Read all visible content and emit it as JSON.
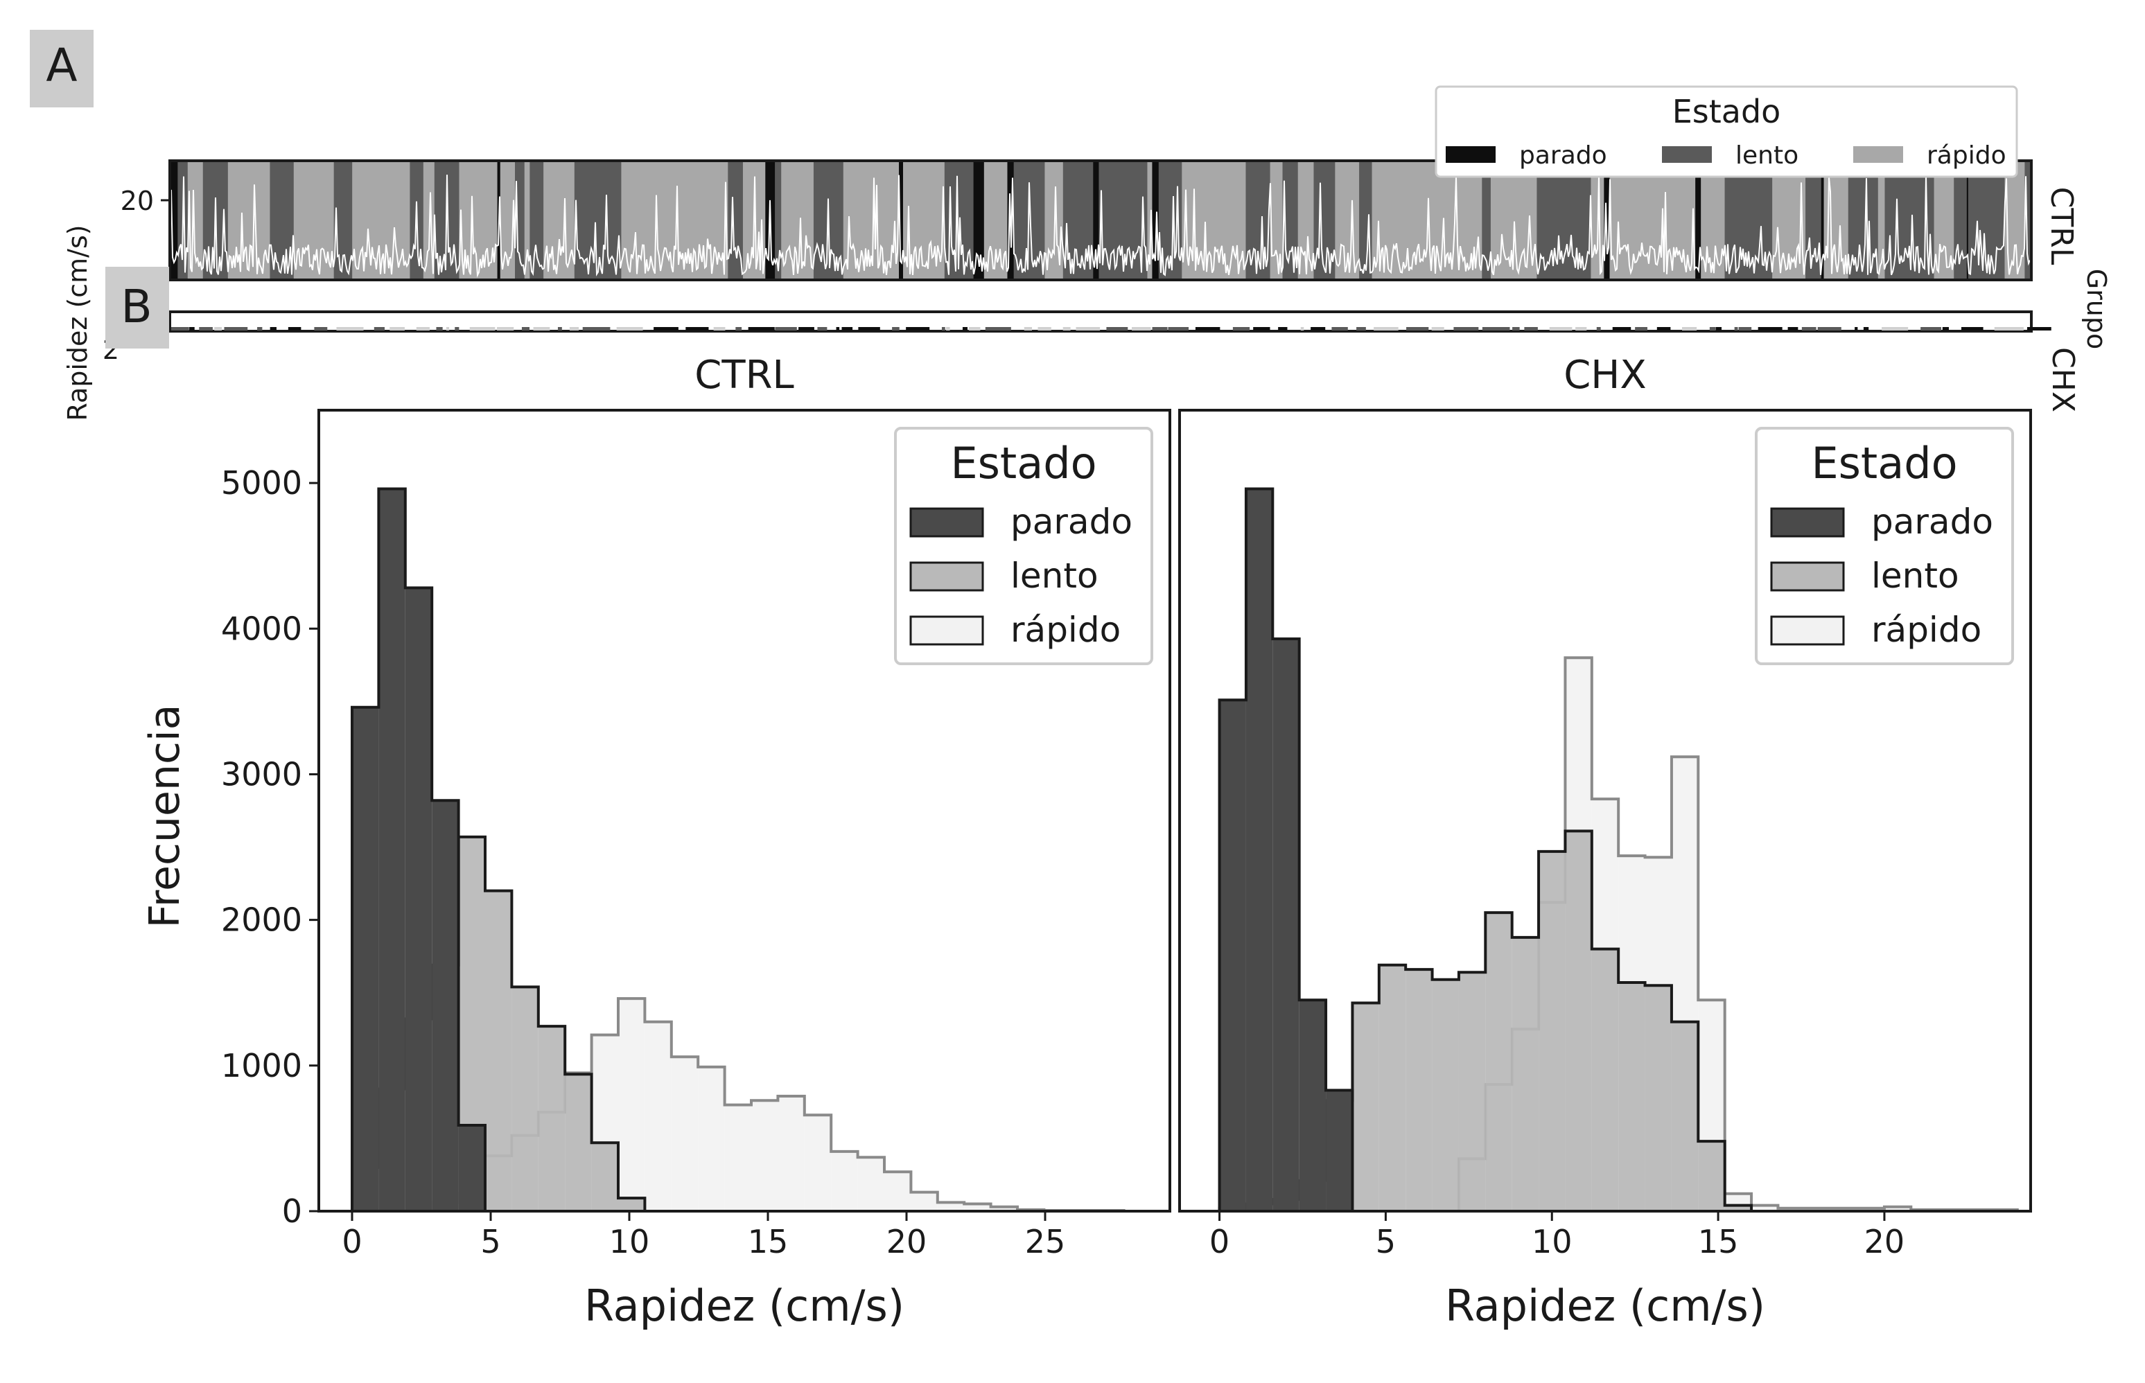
{
  "panel_labels": {
    "a": "A",
    "b": "B"
  },
  "colors": {
    "parado": "#4a4a4a",
    "lento": "#b9b9b9",
    "rapido": "#f2f2f2",
    "edge": "#1a1a1a"
  },
  "top": {
    "y_label": "Rapidez (cm/s)",
    "y_tick": "20",
    "y_tick_cut": "2",
    "facet_title": "Grupo",
    "rows": [
      "CTRL",
      "CHX"
    ],
    "legend": {
      "title": "Estado",
      "items": [
        "parado",
        "lento",
        "rápido"
      ],
      "colors": [
        "#0e0e0e",
        "#5a5a5a",
        "#a8a8a8"
      ]
    }
  },
  "chart_data": [
    {
      "type": "histogram",
      "title": "CTRL",
      "xlabel": "Rapidez (cm/s)",
      "ylabel": "Frecuencia",
      "xlim": [
        -1.2,
        29.5
      ],
      "ylim": [
        0,
        5500
      ],
      "xticks": [
        0,
        5,
        10,
        15,
        20,
        25
      ],
      "yticks": [
        0,
        1000,
        2000,
        3000,
        4000,
        5000
      ],
      "bin_width": 0.96,
      "legend": {
        "title": "Estado",
        "position": "top-right"
      },
      "series": [
        {
          "name": "parado",
          "x0": 0,
          "values": [
            3460,
            4960,
            4280,
            2820,
            590
          ]
        },
        {
          "name": "lento",
          "x0": 0,
          "values": [
            300,
            840,
            1320,
            1690,
            2570,
            2200,
            1540,
            1270,
            940,
            470,
            90
          ]
        },
        {
          "name": "rápido",
          "x0": 2.88,
          "values": [
            60,
            120,
            380,
            520,
            680,
            950,
            1210,
            1460,
            1300,
            1060,
            990,
            730,
            760,
            790,
            660,
            410,
            370,
            270,
            130,
            60,
            50,
            30,
            10,
            5,
            5,
            5
          ]
        }
      ]
    },
    {
      "type": "histogram",
      "title": "CHX",
      "xlabel": "Rapidez (cm/s)",
      "ylabel": "",
      "xlim": [
        -1.2,
        24.4
      ],
      "ylim": [
        0,
        5500
      ],
      "xticks": [
        0,
        5,
        10,
        15,
        20
      ],
      "yticks": [],
      "bin_width": 0.8,
      "legend": {
        "title": "Estado",
        "position": "top-right"
      },
      "series": [
        {
          "name": "parado",
          "x0": 0,
          "values": [
            3510,
            4960,
            3930,
            1450,
            830
          ]
        },
        {
          "name": "lento",
          "x0": 0,
          "values": [
            20,
            50,
            80,
            210,
            760,
            1430,
            1690,
            1660,
            1590,
            1640,
            2050,
            1880,
            2470,
            2610,
            1800,
            1570,
            1550,
            1300,
            480,
            40
          ]
        },
        {
          "name": "rápido",
          "x0": 7.2,
          "values": [
            360,
            870,
            1250,
            2120,
            3800,
            2830,
            2440,
            2430,
            3120,
            1450,
            120,
            40,
            20,
            20,
            20,
            20,
            30,
            10,
            10,
            10,
            10
          ]
        }
      ]
    }
  ]
}
